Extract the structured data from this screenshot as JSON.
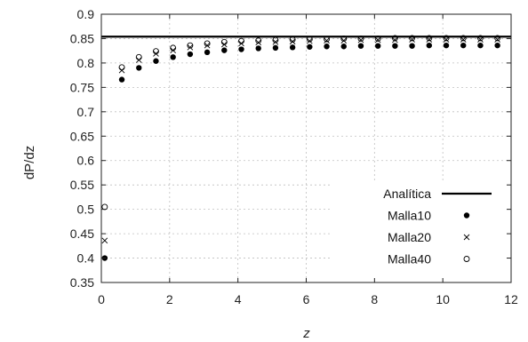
{
  "chart_data": {
    "type": "scatter",
    "xlabel": "z",
    "ylabel": "dP/dz",
    "xlim": [
      0,
      12
    ],
    "ylim": [
      0.35,
      0.9
    ],
    "x_ticks": [
      0,
      2,
      4,
      6,
      8,
      10,
      12
    ],
    "y_ticks": [
      0.35,
      0.4,
      0.45,
      0.5,
      0.55,
      0.6,
      0.65,
      0.7,
      0.75,
      0.8,
      0.85,
      0.9
    ],
    "grid": true,
    "legend_position": "bottom-right",
    "series": [
      {
        "name": "Analítica",
        "marker": "line",
        "color": "#000000",
        "x": [
          0,
          12
        ],
        "y": [
          0.854,
          0.854
        ]
      },
      {
        "name": "Malla10",
        "marker": "filled-circle",
        "color": "#000000",
        "x": [
          0.1,
          0.6,
          1.1,
          1.6,
          2.1,
          2.6,
          3.1,
          3.6,
          4.1,
          4.6,
          5.1,
          5.6,
          6.1,
          6.6,
          7.1,
          7.6,
          8.1,
          8.6,
          9.1,
          9.6,
          10.1,
          10.6,
          11.1,
          11.6
        ],
        "y": [
          0.4,
          0.766,
          0.79,
          0.804,
          0.812,
          0.818,
          0.822,
          0.826,
          0.828,
          0.83,
          0.831,
          0.832,
          0.833,
          0.834,
          0.834,
          0.835,
          0.835,
          0.835,
          0.835,
          0.836,
          0.836,
          0.836,
          0.836,
          0.836
        ]
      },
      {
        "name": "Malla20",
        "marker": "cross",
        "color": "#000000",
        "x": [
          0.1,
          0.6,
          1.1,
          1.6,
          2.1,
          2.6,
          3.1,
          3.6,
          4.1,
          4.6,
          5.1,
          5.6,
          6.1,
          6.6,
          7.1,
          7.6,
          8.1,
          8.6,
          9.1,
          9.6,
          10.1,
          10.6,
          11.1,
          11.6
        ],
        "y": [
          0.436,
          0.785,
          0.806,
          0.819,
          0.826,
          0.832,
          0.836,
          0.838,
          0.84,
          0.842,
          0.843,
          0.844,
          0.845,
          0.846,
          0.846,
          0.847,
          0.847,
          0.847,
          0.848,
          0.848,
          0.848,
          0.848,
          0.848,
          0.848
        ]
      },
      {
        "name": "Malla40",
        "marker": "open-circle",
        "color": "#000000",
        "x": [
          0.1,
          0.6,
          1.1,
          1.6,
          2.1,
          2.6,
          3.1,
          3.6,
          4.1,
          4.6,
          5.1,
          5.6,
          6.1,
          6.6,
          7.1,
          7.6,
          8.1,
          8.6,
          9.1,
          9.6,
          10.1,
          10.6,
          11.1,
          11.6
        ],
        "y": [
          0.505,
          0.791,
          0.812,
          0.824,
          0.831,
          0.836,
          0.84,
          0.843,
          0.845,
          0.846,
          0.847,
          0.848,
          0.849,
          0.849,
          0.85,
          0.85,
          0.85,
          0.851,
          0.851,
          0.851,
          0.851,
          0.851,
          0.851,
          0.851
        ]
      }
    ]
  }
}
